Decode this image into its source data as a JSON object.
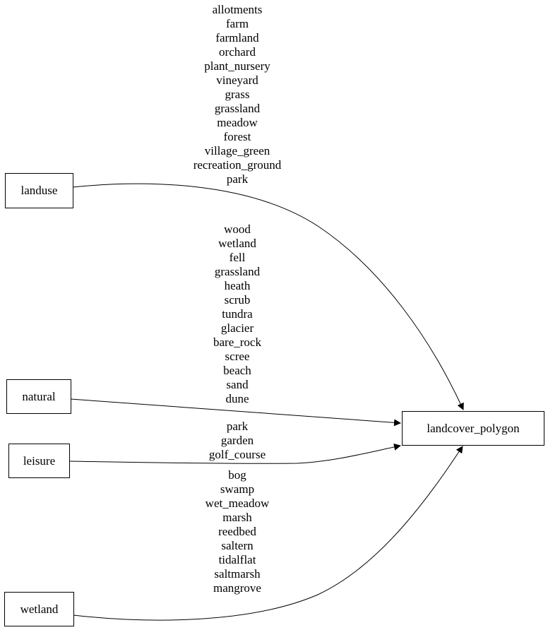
{
  "nodes": {
    "landuse": "landuse",
    "natural": "natural",
    "leisure": "leisure",
    "wetland": "wetland",
    "target": "landcover_polygon"
  },
  "edges": {
    "landuse": [
      "allotments",
      "farm",
      "farmland",
      "orchard",
      "plant_nursery",
      "vineyard",
      "grass",
      "grassland",
      "meadow",
      "forest",
      "village_green",
      "recreation_ground",
      "park"
    ],
    "natural": [
      "wood",
      "wetland",
      "fell",
      "grassland",
      "heath",
      "scrub",
      "tundra",
      "glacier",
      "bare_rock",
      "scree",
      "beach",
      "sand",
      "dune"
    ],
    "leisure": [
      "park",
      "garden",
      "golf_course"
    ],
    "wetland": [
      "bog",
      "swamp",
      "wet_meadow",
      "marsh",
      "reedbed",
      "saltern",
      "tidalflat",
      "saltmarsh",
      "mangrove"
    ]
  }
}
